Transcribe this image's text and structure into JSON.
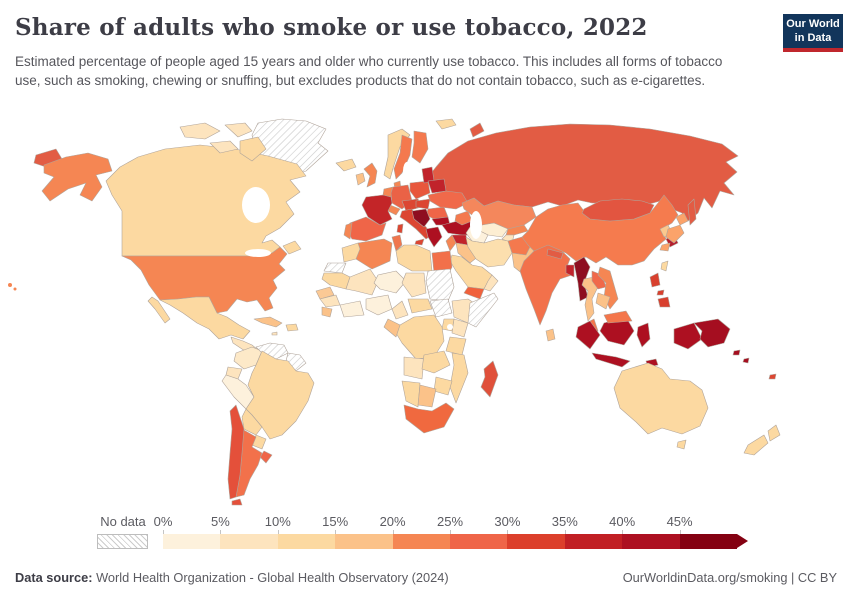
{
  "header": {
    "title": "Share of adults who smoke or use tobacco, 2022",
    "subtitle": "Estimated percentage of people aged 15 years and older who currently use tobacco. This includes all forms of tobacco use, such as smoking, chewing or snuffing, but excludes products that do not contain tobacco, such as e-cigarettes.",
    "logo": {
      "line1": "Our World",
      "line2": "in Data",
      "bg_color": "#12355b",
      "accent_color": "#c0272d"
    }
  },
  "legend": {
    "no_data_label": "No data",
    "ticks": [
      "0%",
      "5%",
      "10%",
      "15%",
      "20%",
      "25%",
      "30%",
      "35%",
      "40%",
      "45%"
    ],
    "colors": [
      "#FDF1DC",
      "#FDE4BE",
      "#FCD9A1",
      "#FBC289",
      "#F58653",
      "#EF6548",
      "#DC3F2B",
      "#C11F24",
      "#AD1021",
      "#840112"
    ]
  },
  "footer": {
    "source_label": "Data source:",
    "source_text": " World Health Organization - Global Health Observatory (2024)",
    "license_text": "OurWorldinData.org/smoking | CC BY"
  },
  "chart_data": {
    "type": "choropleth",
    "title": "Share of adults who smoke or use tobacco",
    "year": 2022,
    "unit": "% of people aged 15+ who currently use tobacco",
    "bins": [
      {
        "range": "0-5%",
        "color": "#FDF1DC"
      },
      {
        "range": "5-10%",
        "color": "#FDE4BE"
      },
      {
        "range": "10-15%",
        "color": "#FCD9A1"
      },
      {
        "range": "15-20%",
        "color": "#FBC289"
      },
      {
        "range": "20-25%",
        "color": "#F58653"
      },
      {
        "range": "25-30%",
        "color": "#EF6548"
      },
      {
        "range": "30-35%",
        "color": "#DC3F2B"
      },
      {
        "range": "35-40%",
        "color": "#C11F24"
      },
      {
        "range": "40-45%",
        "color": "#AD1021"
      },
      {
        "range": "45%+",
        "color": "#840112"
      },
      {
        "range": "No data",
        "color": "hatched"
      }
    ],
    "regions": {
      "greenland": {
        "color": "no-data",
        "range": "No data"
      },
      "canada": {
        "color": "#FCD9A1",
        "range": "10-15%"
      },
      "arctic-islands": {
        "color": "#FDE4BE",
        "range": "5-10%"
      },
      "alaska": {
        "color": "#F58653",
        "range": "20-25%"
      },
      "usa": {
        "color": "#F58653",
        "range": "20-25%"
      },
      "hawaii": {
        "color": "#F58653",
        "range": "20-25%"
      },
      "mexico": {
        "color": "#FCD9A1",
        "range": "10-15%"
      },
      "baja": {
        "color": "#FCD9A1",
        "range": "10-15%"
      },
      "central-america": {
        "color": "#FDE4BE",
        "range": "5-10%"
      },
      "cuba": {
        "color": "#FBC289",
        "range": "15-20%"
      },
      "hispaniola": {
        "color": "#FCD9A1",
        "range": "10-15%"
      },
      "jamaica": {
        "color": "#FDE4BE",
        "range": "5-10%"
      },
      "colombia": {
        "color": "#FDE9C8",
        "range": "5-10%"
      },
      "venezuela": {
        "color": "no-data",
        "range": "No data"
      },
      "guyanas": {
        "color": "no-data",
        "range": "No data"
      },
      "ecuador": {
        "color": "#FDE4BE",
        "range": "5-10%"
      },
      "peru": {
        "color": "#FDF1DC",
        "range": "0-5%"
      },
      "brazil": {
        "color": "#FCD9A1",
        "range": "10-15%"
      },
      "bolivia": {
        "color": "#FCD9A1",
        "range": "10-15%"
      },
      "paraguay": {
        "color": "#FCD9A1",
        "range": "10-15%"
      },
      "uruguay": {
        "color": "#EF6548",
        "range": "25-30%"
      },
      "argentina": {
        "color": "#F2714B",
        "range": "25-30%"
      },
      "chile": {
        "color": "#E4503A",
        "range": "30-35%"
      },
      "tierra-del-fuego": {
        "color": "#E4503A",
        "range": "30-35%"
      },
      "iceland": {
        "color": "#FCD9A1",
        "range": "10-15%"
      },
      "svalbard": {
        "color": "#FCD9A1",
        "range": "10-15%"
      },
      "norway": {
        "color": "#FCD9A1",
        "range": "10-15%"
      },
      "sweden": {
        "color": "#F4794E",
        "range": "20-25%"
      },
      "finland": {
        "color": "#F4794E",
        "range": "20-25%"
      },
      "denmark": {
        "color": "#F58653",
        "range": "20-25%"
      },
      "uk": {
        "color": "#F58653",
        "range": "20-25%"
      },
      "ireland": {
        "color": "#FBC289",
        "range": "15-20%"
      },
      "france": {
        "color": "#C32528",
        "range": "35-40%"
      },
      "spain": {
        "color": "#EF6548",
        "range": "25-30%"
      },
      "portugal": {
        "color": "#F58653",
        "range": "20-25%"
      },
      "germany": {
        "color": "#EA6246",
        "range": "25-30%"
      },
      "benelux": {
        "color": "#F58653",
        "range": "20-25%"
      },
      "switzerland": {
        "color": "#F58653",
        "range": "20-25%"
      },
      "italy": {
        "color": "#DC4632",
        "range": "30-35%"
      },
      "sicily": {
        "color": "#DC4632",
        "range": "30-35%"
      },
      "sardinia": {
        "color": "#DC4632",
        "range": "30-35%"
      },
      "poland": {
        "color": "#E8573C",
        "range": "30-35%"
      },
      "czechia-austria": {
        "color": "#DC4632",
        "range": "30-35%"
      },
      "hungary-slovakia": {
        "color": "#DC4632",
        "range": "30-35%"
      },
      "romania": {
        "color": "#EF6548",
        "range": "25-30%"
      },
      "balkans-west": {
        "color": "#8E0E20",
        "range": "45%+"
      },
      "bulgaria": {
        "color": "#AD1021",
        "range": "40-45%"
      },
      "greece": {
        "color": "#AD1021",
        "range": "40-45%"
      },
      "baltics": {
        "color": "#C1232B",
        "range": "35-40%"
      },
      "belarus": {
        "color": "#C1232B",
        "range": "35-40%"
      },
      "ukraine": {
        "color": "#F0694A",
        "range": "25-30%"
      },
      "russia": {
        "color": "#E25C44",
        "range": "30-35%"
      },
      "chukotka": {
        "color": "#E25C44",
        "range": "30-35%"
      },
      "novaya-zemlya": {
        "color": "#E25C44",
        "range": "30-35%"
      },
      "sakhalin": {
        "color": "#E25C44",
        "range": "30-35%"
      },
      "turkey": {
        "color": "#AD1021",
        "range": "40-45%"
      },
      "caucasus": {
        "color": "#F4794E",
        "range": "20-25%"
      },
      "syria": {
        "color": "#C1232B",
        "range": "35-40%"
      },
      "jordan-israel": {
        "color": "#F58653",
        "range": "20-25%"
      },
      "iraq": {
        "color": "#FBC289",
        "range": "15-20%"
      },
      "saudi-arabia": {
        "color": "#FCD9A1",
        "range": "10-15%"
      },
      "yemen": {
        "color": "#F0613C",
        "range": "25-30%"
      },
      "oman": {
        "color": "#FDE4BE",
        "range": "5-10%"
      },
      "iran": {
        "color": "#FCDFAE",
        "range": "10-15%"
      },
      "kazakhstan": {
        "color": "#F4875C",
        "range": "20-25%"
      },
      "uzbekistan": {
        "color": "#FDEED2",
        "range": "5-10%"
      },
      "turkmenistan": {
        "color": "#FDF1DC",
        "range": "0-5%"
      },
      "kyrgyzstan": {
        "color": "#F58653",
        "range": "20-25%"
      },
      "tajikistan": {
        "color": "#FDE4BE",
        "range": "5-10%"
      },
      "afghanistan": {
        "color": "#F4794E",
        "range": "20-25%"
      },
      "pakistan": {
        "color": "#FBC289",
        "range": "15-20%"
      },
      "india": {
        "color": "#F2714B",
        "range": "25-30%"
      },
      "nepal": {
        "color": "#E25C44",
        "range": "30-35%"
      },
      "bangladesh": {
        "color": "#C1232B",
        "range": "35-40%"
      },
      "sri-lanka": {
        "color": "#FBC289",
        "range": "15-20%"
      },
      "myanmar": {
        "color": "#8E0E20",
        "range": "45%+"
      },
      "thailand": {
        "color": "#FBC289",
        "range": "15-20%"
      },
      "laos": {
        "color": "#F0694A",
        "range": "25-30%"
      },
      "vietnam": {
        "color": "#F58653",
        "range": "20-25%"
      },
      "cambodia": {
        "color": "#FBC289",
        "range": "15-20%"
      },
      "malaysia-peninsula": {
        "color": "#F4764B",
        "range": "20-25%"
      },
      "malaysia-borneo": {
        "color": "#F4764B",
        "range": "20-25%"
      },
      "china": {
        "color": "#F57B4E",
        "range": "20-25%"
      },
      "mongolia": {
        "color": "#E25540",
        "range": "30-35%"
      },
      "north-korea": {
        "color": "#FBC88E",
        "range": "15-20%"
      },
      "south-korea": {
        "color": "#B51D2C",
        "range": "35-40%"
      },
      "japan": {
        "color": "#FBA36A",
        "range": "15-20%"
      },
      "taiwan": {
        "color": "#FCD9A1",
        "range": "10-15%"
      },
      "philippines-luzon": {
        "color": "#D8402E",
        "range": "30-35%"
      },
      "philippines-visayas": {
        "color": "#D8402E",
        "range": "30-35%"
      },
      "philippines-mindanao": {
        "color": "#D8402E",
        "range": "30-35%"
      },
      "sumatra": {
        "color": "#AD1021",
        "range": "40-45%"
      },
      "java": {
        "color": "#AD1021",
        "range": "40-45%"
      },
      "borneo-indonesia": {
        "color": "#AD1021",
        "range": "40-45%"
      },
      "sulawesi": {
        "color": "#AD1021",
        "range": "40-45%"
      },
      "west-papua": {
        "color": "#AD1021",
        "range": "40-45%"
      },
      "timor": {
        "color": "#AD1021",
        "range": "40-45%"
      },
      "papua-new-guinea": {
        "color": "#A50E20",
        "range": "40-45%"
      },
      "solomon-1": {
        "color": "#A50E20",
        "range": "40-45%"
      },
      "solomon-2": {
        "color": "#A50E20",
        "range": "40-45%"
      },
      "fiji": {
        "color": "#DC4632",
        "range": "30-35%"
      },
      "australia": {
        "color": "#FCD9A1",
        "range": "10-15%"
      },
      "tasmania": {
        "color": "#FCD9A1",
        "range": "10-15%"
      },
      "nz-north": {
        "color": "#FCD9A1",
        "range": "10-15%"
      },
      "nz-south": {
        "color": "#FCD9A1",
        "range": "10-15%"
      },
      "morocco": {
        "color": "#FCD9A1",
        "range": "10-15%"
      },
      "western-sahara": {
        "color": "no-data",
        "range": "No data"
      },
      "algeria": {
        "color": "#F58653",
        "range": "20-25%"
      },
      "tunisia": {
        "color": "#F0764E",
        "range": "25-30%"
      },
      "libya": {
        "color": "#FCD9A1",
        "range": "10-15%"
      },
      "egypt": {
        "color": "#F2704A",
        "range": "25-30%"
      },
      "mauritania": {
        "color": "#FCD9A1",
        "range": "10-15%"
      },
      "mali": {
        "color": "#FDE4BE",
        "range": "5-10%"
      },
      "niger": {
        "color": "#FDF1DC",
        "range": "0-5%"
      },
      "chad": {
        "color": "#FDE4BE",
        "range": "5-10%"
      },
      "sudan": {
        "color": "no-data",
        "range": "No data"
      },
      "senegal": {
        "color": "#FBC995",
        "range": "15-20%"
      },
      "guinea": {
        "color": "#FDE4BE",
        "range": "5-10%"
      },
      "sierra-leone": {
        "color": "#FBC289",
        "range": "15-20%"
      },
      "ivory-ghana": {
        "color": "#FDF1DC",
        "range": "0-5%"
      },
      "nigeria": {
        "color": "#FDF1DC",
        "range": "0-5%"
      },
      "cameroon": {
        "color": "#FDE4BE",
        "range": "5-10%"
      },
      "car": {
        "color": "#FCD9A1",
        "range": "10-15%"
      },
      "south-sudan": {
        "color": "no-data",
        "range": "No data"
      },
      "ethiopia": {
        "color": "#FDE4BE",
        "range": "5-10%"
      },
      "somalia": {
        "color": "no-data",
        "range": "No data"
      },
      "kenya": {
        "color": "#FDE4BE",
        "range": "5-10%"
      },
      "uganda": {
        "color": "#FCD9A1",
        "range": "10-15%"
      },
      "drc": {
        "color": "#FCD9A1",
        "range": "10-15%"
      },
      "congo-gabon": {
        "color": "#FBC289",
        "range": "15-20%"
      },
      "tanzania": {
        "color": "#FCD9A1",
        "range": "10-15%"
      },
      "angola": {
        "color": "#FDE4BE",
        "range": "5-10%"
      },
      "zambia": {
        "color": "#FCD9A1",
        "range": "10-15%"
      },
      "malawi-mozambique": {
        "color": "#FCD9A1",
        "range": "10-15%"
      },
      "zimbabwe": {
        "color": "#FCD9A1",
        "range": "10-15%"
      },
      "namibia": {
        "color": "#FCD9A1",
        "range": "10-15%"
      },
      "botswana": {
        "color": "#FBC289",
        "range": "15-20%"
      },
      "south-africa": {
        "color": "#F0693F",
        "range": "25-30%"
      },
      "madagascar": {
        "color": "#E0503A",
        "range": "30-35%"
      }
    }
  }
}
